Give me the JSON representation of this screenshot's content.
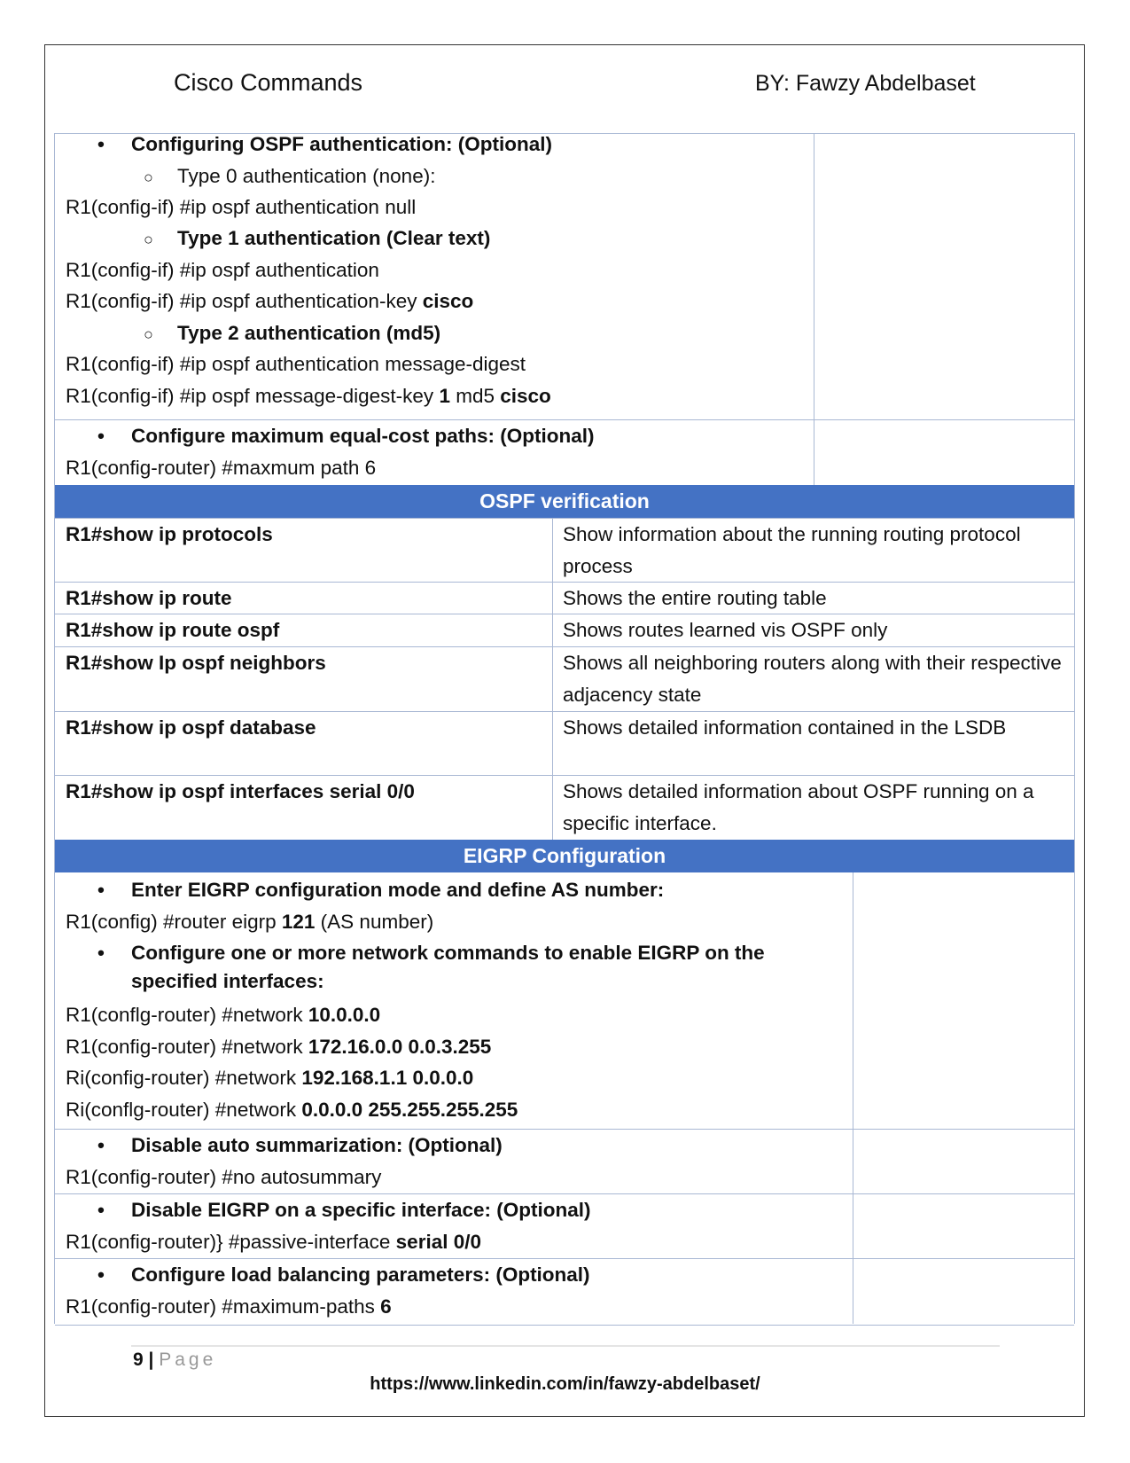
{
  "header": {
    "title": "Cisco Commands",
    "author": "BY:  Fawzy  Abdelbaset"
  },
  "ospf_auth": {
    "heading": "Configuring OSPF authentication: (Optional)",
    "type0": "Type 0 authentication (none):",
    "type0_cmd": "R1(config-if) #ip ospf authentication null",
    "type1": "Type 1 authentication (Clear text)",
    "type1_cmd1": "R1(config-if) #ip ospf authentication",
    "type1_cmd2_a": "R1(config-if) #ip ospf authentication-key ",
    "type1_cmd2_b": "cisco",
    "type2": "Type 2 authentication (md5)",
    "type2_cmd1": "R1(config-if) #ip ospf authentication message-digest",
    "type2_cmd2_a": "R1(config-if) #ip ospf message-digest-key ",
    "type2_cmd2_b": "1",
    "type2_cmd2_c": " md5 ",
    "type2_cmd2_d": "cisco"
  },
  "ospf_paths": {
    "heading": "Configure maximum equal-cost paths: (Optional)",
    "cmd": "R1(config-router) #maxmum path 6"
  },
  "ospf_verification": {
    "title": "OSPF verification",
    "rows": [
      {
        "cmd": "R1#show ip protocols",
        "desc": "Show information about the running routing protocol process"
      },
      {
        "cmd": "R1#show ip route",
        "desc": "Shows the entire routing table"
      },
      {
        "cmd": "R1#show ip route ospf",
        "desc": "Shows routes learned vis OSPF only"
      },
      {
        "cmd": "R1#show Ip ospf neighbors",
        "desc": "Shows all neighboring routers along with their respective adjacency state"
      },
      {
        "cmd": "R1#show ip ospf database",
        "desc": "Shows detailed information contained in the LSDB"
      },
      {
        "cmd": "R1#show ip ospf interfaces serial 0/0",
        "desc": "Shows detailed information about OSPF running on a specific interface."
      }
    ]
  },
  "eigrp": {
    "title": "EIGRP Configuration",
    "enter_heading": "Enter EIGRP configuration mode and define AS number:",
    "enter_cmd_a": "R1(config) #router eigrp ",
    "enter_cmd_b": "121",
    "enter_cmd_c": " (AS number)",
    "network_heading": "Configure one or more network commands to enable EIGRP on the specified interfaces:",
    "networks": [
      {
        "prefix": "R1(conflg-router) #network ",
        "value": "10.0.0.0"
      },
      {
        "prefix": "R1(config-router) #network ",
        "value": "172.16.0.0 0.0.3.255"
      },
      {
        "prefix": "Ri(config-router) #network ",
        "value": "192.168.1.1 0.0.0.0"
      },
      {
        "prefix": "Ri(conflg-router) #network ",
        "value": "0.0.0.0 255.255.255.255"
      }
    ],
    "auto_heading": "Disable auto summarization: (Optional)",
    "auto_cmd": "R1(config-router) #no autosummary",
    "passive_heading": "Disable EIGRP on a specific interface: (Optional)",
    "passive_cmd_a": "R1(config-router)} #passive-interface ",
    "passive_cmd_b": "serial 0/0",
    "lb_heading": "Configure load balancing parameters: (Optional)",
    "lb_cmd_a": "R1(config-router) #maximum-paths ",
    "lb_cmd_b": "6"
  },
  "footer": {
    "page_number": "9",
    "page_sep": " | ",
    "page_label": "Page",
    "url": "https://www.linkedin.com/in/fawzy-abdelbaset/"
  },
  "colors": {
    "accent": "#4472c4",
    "border": "#a9b8d4"
  }
}
